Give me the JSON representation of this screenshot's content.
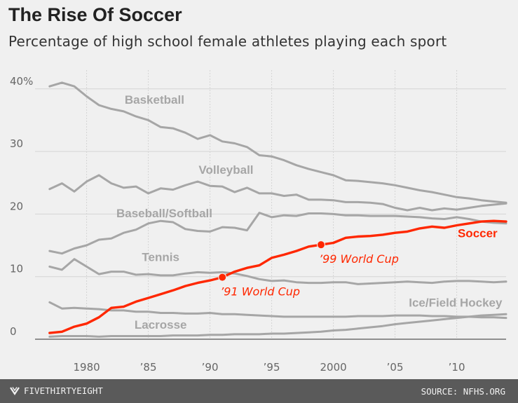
{
  "chart_data": {
    "type": "line",
    "title": "The Rise Of Soccer",
    "subtitle": "Percentage of high school female athletes playing each sport",
    "xlabel": "",
    "ylabel": "",
    "xlim": [
      1976.5,
      2014
    ],
    "ylim": [
      0,
      43
    ],
    "yticks": [
      0,
      10,
      20,
      30,
      40
    ],
    "ytick_labels": [
      "0",
      "10",
      "20",
      "30",
      "40%"
    ],
    "xticks": [
      1980,
      1985,
      1990,
      1995,
      2000,
      2005,
      2010
    ],
    "xtick_labels": [
      "1980",
      "’85",
      "’90",
      "’95",
      "2000",
      "’05",
      "’10"
    ],
    "series": [
      {
        "name": "Basketball",
        "label": "Basketball",
        "color": "#a6a6a6",
        "highlight": false,
        "label_x": 1985.5,
        "label_y": 37.6,
        "x": [
          1977,
          1978,
          1979,
          1980,
          1981,
          1982,
          1983,
          1984,
          1985,
          1986,
          1987,
          1988,
          1989,
          1990,
          1991,
          1992,
          1993,
          1994,
          1995,
          1996,
          1997,
          1998,
          1999,
          2000,
          2001,
          2002,
          2003,
          2004,
          2005,
          2006,
          2007,
          2008,
          2009,
          2010,
          2011,
          2012,
          2013,
          2014
        ],
        "values": [
          40.4,
          41.0,
          40.4,
          38.8,
          37.4,
          36.8,
          36.4,
          35.6,
          35.0,
          33.9,
          33.7,
          33.0,
          32.0,
          32.6,
          31.6,
          31.3,
          30.7,
          29.4,
          29.2,
          28.6,
          27.8,
          27.2,
          26.7,
          26.2,
          25.4,
          25.3,
          25.1,
          24.9,
          24.6,
          24.2,
          23.8,
          23.5,
          23.1,
          22.7,
          22.5,
          22.2,
          22.0,
          21.8
        ]
      },
      {
        "name": "Volleyball",
        "label": "Volleyball",
        "color": "#a6a6a6",
        "highlight": false,
        "label_x": 1991.3,
        "label_y": 26.4,
        "x": [
          1977,
          1978,
          1979,
          1980,
          1981,
          1982,
          1983,
          1984,
          1985,
          1986,
          1987,
          1988,
          1989,
          1990,
          1991,
          1992,
          1993,
          1994,
          1995,
          1996,
          1997,
          1998,
          1999,
          2000,
          2001,
          2002,
          2003,
          2004,
          2005,
          2006,
          2007,
          2008,
          2009,
          2010,
          2011,
          2012,
          2013,
          2014
        ],
        "values": [
          24.0,
          24.9,
          23.6,
          25.2,
          26.2,
          24.9,
          24.2,
          24.4,
          23.3,
          24.1,
          23.9,
          24.6,
          25.2,
          24.5,
          24.4,
          23.5,
          24.2,
          23.3,
          23.3,
          22.9,
          23.1,
          22.3,
          22.3,
          22.2,
          21.9,
          21.9,
          21.8,
          21.6,
          21.0,
          20.6,
          21.0,
          20.6,
          20.9,
          20.7,
          21.0,
          21.3,
          21.5,
          21.7
        ]
      },
      {
        "name": "Baseball/Softball",
        "label": "Baseball/Softball",
        "color": "#a6a6a6",
        "highlight": false,
        "label_x": 1986.3,
        "label_y": 19.5,
        "x": [
          1977,
          1978,
          1979,
          1980,
          1981,
          1982,
          1983,
          1984,
          1985,
          1986,
          1987,
          1988,
          1989,
          1990,
          1991,
          1992,
          1993,
          1994,
          1995,
          1996,
          1997,
          1998,
          1999,
          2000,
          2001,
          2002,
          2003,
          2004,
          2005,
          2006,
          2007,
          2008,
          2009,
          2010,
          2011,
          2012,
          2013,
          2014
        ],
        "values": [
          14.1,
          13.7,
          14.5,
          15.0,
          15.9,
          16.1,
          17.0,
          17.5,
          18.5,
          18.9,
          18.7,
          17.6,
          17.3,
          17.2,
          17.9,
          17.8,
          17.4,
          20.2,
          19.5,
          19.8,
          19.7,
          20.1,
          20.1,
          20.0,
          19.8,
          19.8,
          19.7,
          19.7,
          19.7,
          19.6,
          19.5,
          19.3,
          19.2,
          19.5,
          19.2,
          18.8,
          18.6,
          18.5
        ]
      },
      {
        "name": "Tennis",
        "label": "Tennis",
        "color": "#a6a6a6",
        "highlight": false,
        "label_x": 1986.0,
        "label_y": 12.5,
        "x": [
          1977,
          1978,
          1979,
          1980,
          1981,
          1982,
          1983,
          1984,
          1985,
          1986,
          1987,
          1988,
          1989,
          1990,
          1991,
          1992,
          1993,
          1994,
          1995,
          1996,
          1997,
          1998,
          1999,
          2000,
          2001,
          2002,
          2003,
          2004,
          2005,
          2006,
          2007,
          2008,
          2009,
          2010,
          2011,
          2012,
          2013,
          2014
        ],
        "values": [
          11.6,
          11.1,
          12.8,
          11.6,
          10.4,
          10.8,
          10.8,
          10.3,
          10.4,
          10.2,
          10.2,
          10.5,
          10.7,
          10.6,
          10.7,
          10.5,
          10.1,
          9.6,
          9.3,
          9.4,
          9.1,
          9.0,
          9.0,
          9.1,
          9.1,
          8.8,
          8.9,
          9.0,
          9.1,
          9.2,
          9.1,
          9.0,
          9.2,
          9.3,
          9.3,
          9.2,
          9.1,
          9.2
        ]
      },
      {
        "name": "Ice/Field Hockey",
        "label": "Ice/Field Hockey",
        "color": "#a6a6a6",
        "highlight": false,
        "label_x": 2009.9,
        "label_y": 5.2,
        "x": [
          1977,
          1978,
          1979,
          1980,
          1981,
          1982,
          1983,
          1984,
          1985,
          1986,
          1987,
          1988,
          1989,
          1990,
          1991,
          1992,
          1993,
          1994,
          1995,
          1996,
          1997,
          1998,
          1999,
          2000,
          2001,
          2002,
          2003,
          2004,
          2005,
          2006,
          2007,
          2008,
          2009,
          2010,
          2011,
          2012,
          2013,
          2014
        ],
        "values": [
          5.9,
          4.9,
          5.0,
          4.9,
          4.8,
          4.6,
          4.6,
          4.4,
          4.4,
          4.2,
          4.2,
          4.1,
          4.1,
          4.2,
          4.0,
          4.0,
          3.9,
          3.8,
          3.7,
          3.6,
          3.6,
          3.6,
          3.6,
          3.6,
          3.6,
          3.7,
          3.7,
          3.7,
          3.8,
          3.8,
          3.8,
          3.7,
          3.7,
          3.6,
          3.6,
          3.5,
          3.5,
          3.4
        ]
      },
      {
        "name": "Lacrosse",
        "label": "Lacrosse",
        "color": "#a6a6a6",
        "highlight": false,
        "label_x": 1986.0,
        "label_y": 1.7,
        "x": [
          1977,
          1978,
          1979,
          1980,
          1981,
          1982,
          1983,
          1984,
          1985,
          1986,
          1987,
          1988,
          1989,
          1990,
          1991,
          1992,
          1993,
          1994,
          1995,
          1996,
          1997,
          1998,
          1999,
          2000,
          2001,
          2002,
          2003,
          2004,
          2005,
          2006,
          2007,
          2008,
          2009,
          2010,
          2011,
          2012,
          2013,
          2014
        ],
        "values": [
          0.4,
          0.5,
          0.5,
          0.5,
          0.4,
          0.5,
          0.5,
          0.5,
          0.5,
          0.5,
          0.6,
          0.6,
          0.6,
          0.7,
          0.7,
          0.8,
          0.8,
          0.8,
          0.9,
          0.9,
          1.0,
          1.1,
          1.2,
          1.4,
          1.5,
          1.7,
          1.9,
          2.1,
          2.4,
          2.6,
          2.8,
          3.0,
          3.2,
          3.4,
          3.6,
          3.8,
          3.9,
          4.0
        ]
      },
      {
        "name": "Soccer",
        "label": "Soccer",
        "color": "#ff2700",
        "highlight": true,
        "label_x": 2013.3,
        "label_y": 16.3,
        "x": [
          1977,
          1978,
          1979,
          1980,
          1981,
          1982,
          1983,
          1984,
          1985,
          1986,
          1987,
          1988,
          1989,
          1990,
          1991,
          1992,
          1993,
          1994,
          1995,
          1996,
          1997,
          1998,
          1999,
          2000,
          2001,
          2002,
          2003,
          2004,
          2005,
          2006,
          2007,
          2008,
          2009,
          2010,
          2011,
          2012,
          2013,
          2014
        ],
        "values": [
          1.0,
          1.2,
          2.0,
          2.5,
          3.5,
          5.0,
          5.2,
          6.0,
          6.6,
          7.2,
          7.8,
          8.5,
          9.0,
          9.4,
          9.9,
          10.8,
          11.4,
          11.8,
          13.0,
          13.5,
          14.1,
          14.8,
          15.1,
          15.4,
          16.2,
          16.4,
          16.5,
          16.7,
          17.0,
          17.2,
          17.7,
          18.0,
          17.8,
          18.2,
          18.5,
          18.8,
          18.9,
          18.8
        ]
      }
    ],
    "annotations": [
      {
        "text": "’91 World Cup",
        "x": 1991,
        "y": 9.9,
        "color": "#ff2700",
        "italic": true
      },
      {
        "text": "’99 World Cup",
        "x": 1999,
        "y": 15.1,
        "color": "#ff2700",
        "italic": true
      }
    ],
    "grid": true,
    "legend": "none"
  },
  "footer": {
    "brand": "FIVETHIRTYEIGHT",
    "source": "SOURCE: NFHS.ORG"
  }
}
